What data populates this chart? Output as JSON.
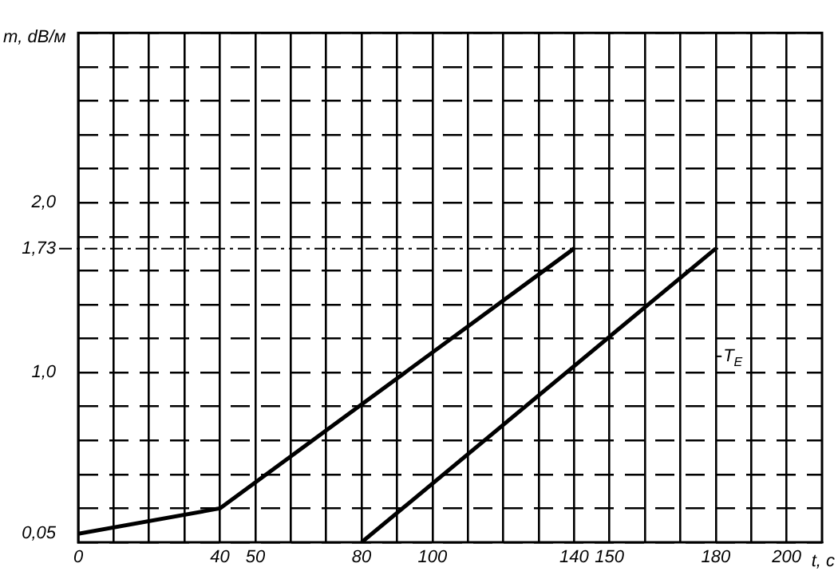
{
  "chart_data": {
    "type": "line",
    "xlabel": "t, c",
    "ylabel": "m, dB/м",
    "series": [
      {
        "color": "#000000",
        "x": [
          0,
          40,
          140
        ],
        "values": [
          0.05,
          0.2,
          1.73
        ]
      },
      {
        "color": "#000000",
        "x": [
          80,
          180
        ],
        "values": [
          0,
          1.73
        ]
      }
    ],
    "xlim": [
      0,
      210
    ],
    "xticks": [
      0,
      {
        "value": 10,
        "label": null
      },
      {
        "value": 20,
        "label": null
      },
      {
        "value": 30,
        "label": null
      },
      40,
      50,
      {
        "value": 60,
        "label": null
      },
      {
        "value": 70,
        "label": null
      },
      80,
      {
        "value": 90,
        "label": null
      },
      100,
      {
        "value": 110,
        "label": null
      },
      {
        "value": 120,
        "label": null
      },
      {
        "value": 130,
        "label": null
      },
      140,
      150,
      {
        "value": 160,
        "label": null
      },
      {
        "value": 170,
        "label": null
      },
      180,
      {
        "value": 190,
        "label": null
      },
      200
    ],
    "ylim": [
      0,
      3
    ],
    "yticks": [
      {
        "value": 0,
        "label": null
      },
      {
        "value": 0.05,
        "label": "0,05"
      },
      {
        "value": 0.2,
        "label": null
      },
      {
        "value": 0.4,
        "label": null
      },
      {
        "value": 0.6,
        "label": null
      },
      {
        "value": 0.8,
        "label": null
      },
      {
        "value": 1,
        "label": "1,0"
      },
      {
        "value": 1.2,
        "label": null
      },
      {
        "value": 1.4,
        "label": null
      },
      {
        "value": 1.6,
        "label": null
      },
      {
        "value": 1.73,
        "label": "1,73"
      },
      {
        "value": 1.8,
        "label": null
      },
      {
        "value": 2,
        "label": "2,0"
      },
      {
        "value": 2.2,
        "label": null
      },
      {
        "value": 2.4,
        "label": null
      },
      {
        "value": 2.6,
        "label": null
      },
      {
        "value": 2.8,
        "label": null
      },
      {
        "value": 3,
        "label": null
      }
    ],
    "ref_lines": [
      {
        "axis": "y",
        "value": 1.73,
        "color": "#000000",
        "line_style": "dashed"
      }
    ],
    "annotations": [
      "T$_{E}$"
    ],
    "grid": true,
    "legend": false,
    "marker": "none",
    "line_style": "solid"
  }
}
